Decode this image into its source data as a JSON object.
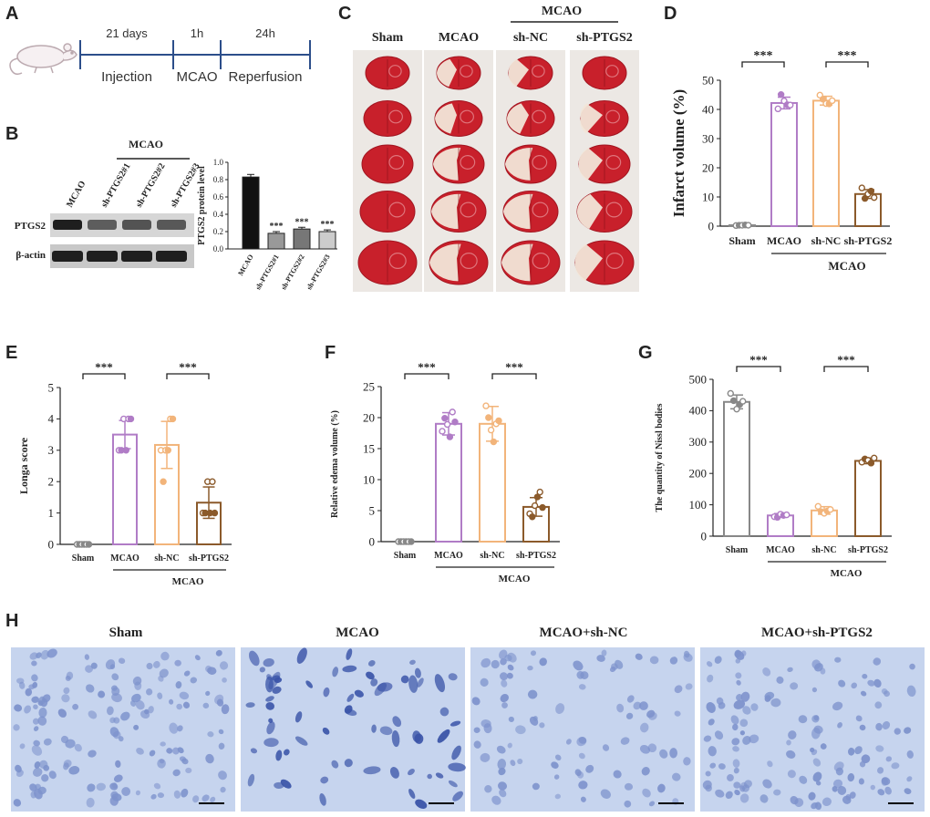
{
  "panel_labels": {
    "A": "A",
    "B": "B",
    "C": "C",
    "D": "D",
    "E": "E",
    "F": "F",
    "G": "G",
    "H": "H"
  },
  "colors": {
    "sham": "#888888",
    "mcao": "#b07cc6",
    "shnc": "#f2b47a",
    "shptgs2": "#8b5a2b",
    "black": "#222222"
  },
  "panelA": {
    "durations": [
      "21 days",
      "1h",
      "24h"
    ],
    "phases": [
      "Injection",
      "MCAO",
      "Reperfusion"
    ]
  },
  "panelB": {
    "group_label": "MCAO",
    "lanes": [
      "MCAO",
      "sh-PTGS2#1",
      "sh-PTGS2#2",
      "sh-PTGS2#3"
    ],
    "bands": [
      "PTGS2",
      "β-actin"
    ],
    "chart_data": {
      "type": "bar",
      "title": "",
      "ylabel": "PTGS2 protein level",
      "ylim": [
        0,
        1.0
      ],
      "yticks": [
        "0.0",
        "0.2",
        "0.4",
        "0.6",
        "0.8",
        "1.0"
      ],
      "categories": [
        "MCAO",
        "sh-PTGS2#1",
        "sh-PTGS2#2",
        "sh-PTGS2#3"
      ],
      "values": [
        0.83,
        0.18,
        0.23,
        0.2
      ],
      "errors": [
        0.03,
        0.02,
        0.02,
        0.02
      ],
      "annotations": [
        "",
        "***",
        "***",
        "***"
      ]
    }
  },
  "panelC": {
    "header": "MCAO",
    "columns": [
      "Sham",
      "MCAO",
      "sh-NC",
      "sh-PTGS2"
    ]
  },
  "panelD": {
    "chart_data": {
      "type": "bar",
      "ylabel": "Infarct volume (%)",
      "ylim": [
        0,
        50
      ],
      "yticks": [
        "0",
        "10",
        "20",
        "30",
        "40",
        "50"
      ],
      "categories": [
        "Sham",
        "MCAO",
        "sh-NC",
        "sh-PTGS2"
      ],
      "values": [
        0.3,
        42.2,
        43.0,
        11.0
      ],
      "errors": [
        0.2,
        2.0,
        1.5,
        1.5
      ],
      "points": [
        [
          0.2,
          0.3,
          0.3,
          0.4,
          0.3
        ],
        [
          40.2,
          45.1,
          42.9,
          41.6,
          41.5
        ],
        [
          44.9,
          43.5,
          42.0,
          41.9,
          43.0
        ],
        [
          13.1,
          9.5,
          11.0,
          12.0,
          9.8
        ]
      ],
      "group_label": "MCAO",
      "significance": [
        "***",
        "***"
      ]
    }
  },
  "panelE": {
    "chart_data": {
      "type": "bar",
      "ylabel": "Longa score",
      "ylim": [
        0,
        5
      ],
      "yticks": [
        "0",
        "1",
        "2",
        "3",
        "4",
        "5"
      ],
      "categories": [
        "Sham",
        "MCAO",
        "sh-NC",
        "sh-PTGS2"
      ],
      "values": [
        0,
        3.5,
        3.17,
        1.33
      ],
      "errors": [
        0,
        0.45,
        0.75,
        0.5
      ],
      "points": [
        [
          0,
          0,
          0,
          0,
          0,
          0
        ],
        [
          3,
          3,
          4,
          3,
          4,
          4
        ],
        [
          3,
          2,
          3,
          3,
          4,
          4
        ],
        [
          1,
          1,
          2,
          1,
          2,
          1
        ]
      ],
      "group_label": "MCAO",
      "significance": [
        "***",
        "***"
      ]
    }
  },
  "panelF": {
    "chart_data": {
      "type": "bar",
      "ylabel": "Relative edema volume (%)",
      "ylim": [
        0,
        25
      ],
      "yticks": [
        "0",
        "5",
        "10",
        "15",
        "20",
        "25"
      ],
      "categories": [
        "Sham",
        "MCAO",
        "sh-NC",
        "sh-PTGS2"
      ],
      "values": [
        0,
        19.0,
        19.0,
        5.6
      ],
      "errors": [
        0,
        1.8,
        2.8,
        1.5
      ],
      "points": [
        [
          0,
          0,
          0,
          0,
          0,
          0
        ],
        [
          17.8,
          19.9,
          18.9,
          16.9,
          20.9,
          19.3
        ],
        [
          21.9,
          20.0,
          18.0,
          16.1,
          19.0,
          19.5
        ],
        [
          4.5,
          4.0,
          5.8,
          7.2,
          8.0,
          5.5
        ]
      ],
      "group_label": "MCAO",
      "significance": [
        "***",
        "***"
      ]
    }
  },
  "panelG": {
    "chart_data": {
      "type": "bar",
      "ylabel": "The quantity of Nissl bodies",
      "ylim": [
        0,
        500
      ],
      "yticks": [
        "0",
        "100",
        "200",
        "300",
        "400",
        "500"
      ],
      "categories": [
        "Sham",
        "MCAO",
        "sh-NC",
        "sh-PTGS2"
      ],
      "values": [
        428,
        66,
        82,
        240
      ],
      "errors": [
        22,
        6,
        12,
        9
      ],
      "points": [
        [
          455,
          432,
          405,
          420,
          430
        ],
        [
          62,
          60,
          70,
          66,
          68
        ],
        [
          95,
          78,
          73,
          80,
          85
        ],
        [
          236,
          246,
          242,
          233,
          249
        ]
      ],
      "group_label": "MCAO",
      "significance": [
        "***",
        "***"
      ]
    }
  },
  "panelH": {
    "titles": [
      "Sham",
      "MCAO",
      "MCAO+sh-NC",
      "MCAO+sh-PTGS2"
    ]
  }
}
